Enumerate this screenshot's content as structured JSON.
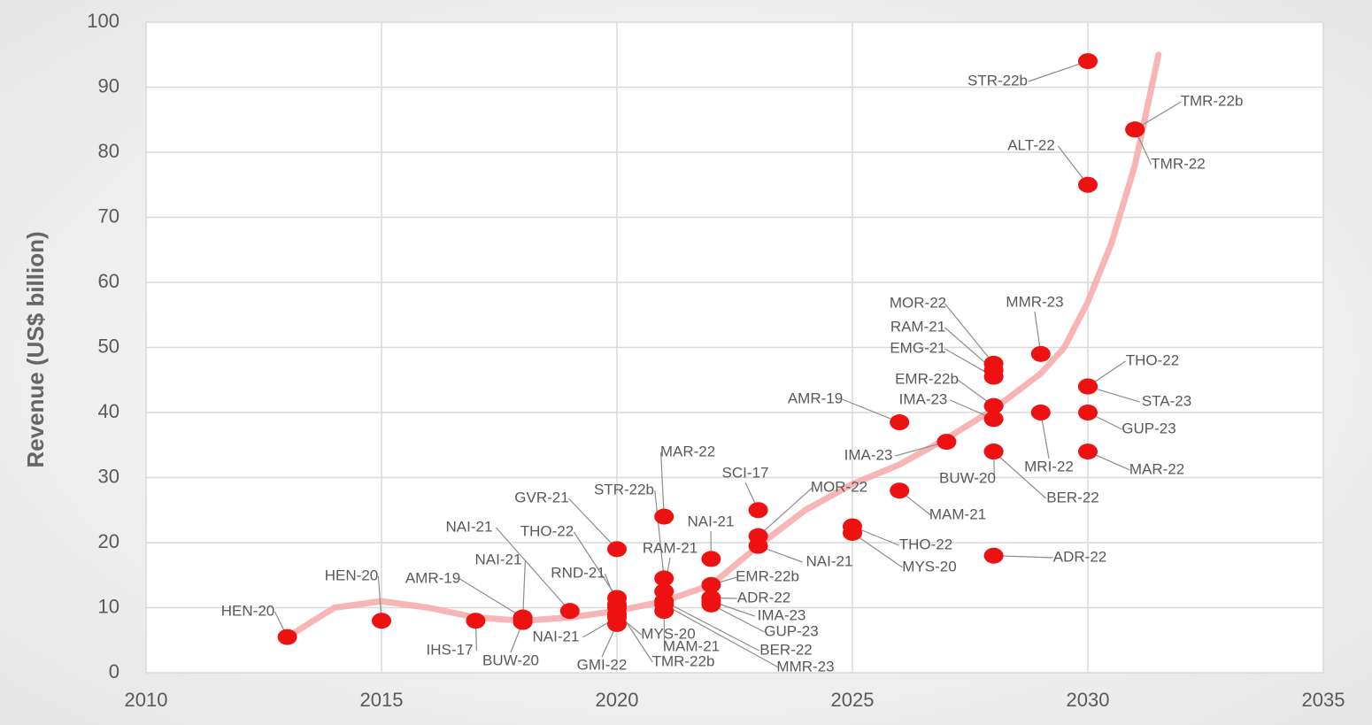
{
  "chart_data": {
    "type": "scatter",
    "y_label": "Revenue (US$ billion)",
    "xlim": [
      2010,
      2035
    ],
    "xticks": [
      2010,
      2015,
      2020,
      2025,
      2030,
      2035
    ],
    "ylim": [
      0,
      100
    ],
    "yticks": [
      0,
      10,
      20,
      30,
      40,
      50,
      60,
      70,
      80,
      90,
      100
    ],
    "grid": true,
    "series": [
      {
        "color": "#ee1111",
        "x": [
          2013,
          2015,
          2017,
          2018,
          2018,
          2018,
          2019,
          2020,
          2020,
          2020,
          2020,
          2020,
          2020,
          2020,
          2021,
          2021,
          2021,
          2021,
          2021,
          2021,
          2022,
          2022,
          2022,
          2022,
          2022,
          2023,
          2023,
          2023,
          2025,
          2025,
          2026,
          2026,
          2027,
          2028,
          2028,
          2028,
          2028,
          2028,
          2028,
          2028,
          2028,
          2029,
          2029,
          2030,
          2030,
          2030,
          2030,
          2030,
          2030,
          2031,
          2031
        ],
        "values": [
          5.5,
          8,
          8,
          8.5,
          7.8,
          8.3,
          9.5,
          11.5,
          19,
          10.5,
          8.5,
          7.5,
          9,
          10,
          14.5,
          24,
          12.5,
          9.5,
          11,
          10.5,
          17.5,
          13.5,
          11.5,
          11,
          10.5,
          25,
          21,
          19.5,
          22.5,
          21.5,
          28,
          38.5,
          35.5,
          47.5,
          46.5,
          45.5,
          41,
          39,
          34,
          34,
          18,
          49,
          40,
          94,
          75,
          44,
          44,
          40,
          34,
          83.5,
          83.5
        ],
        "labels": [
          "HEN-20",
          "HEN-20",
          "IHS-17",
          "AMR-19",
          "BUW-20",
          "NAI-21",
          "NAI-21",
          "THO-22",
          "GVR-21",
          "RND-21",
          "NAI-21",
          "GMI-22",
          "MYS-20",
          "TMR-22b",
          "STR-22b",
          "MAR-22",
          "RAM-21",
          "MAM-21",
          "BER-22",
          "MMR-23",
          "NAI-21",
          "EMR-22b",
          "ADR-22",
          "IMA-23",
          "GUP-23",
          "SCI-17",
          "MOR-22",
          "NAI-21",
          "THO-22",
          "MYS-20",
          "MAM-21",
          "AMR-19",
          "IMA-23",
          "MOR-22",
          "RAM-21",
          "EMG-21",
          "EMR-22b",
          "IMA-23",
          "BUW-20",
          "BER-22",
          "ADR-22",
          "MMR-23",
          "MRI-22",
          "STR-22b",
          "ALT-22",
          "THO-22",
          "STA-23",
          "GUP-23",
          "MAR-22",
          "TMR-22b",
          "TMR-22"
        ]
      }
    ],
    "trend": {
      "color": "#f7a8a8",
      "x": [
        2013,
        2014,
        2015,
        2016,
        2017,
        2018,
        2019,
        2020,
        2021,
        2022,
        2023,
        2024,
        2025,
        2026,
        2027,
        2028,
        2029,
        2029.5,
        2030,
        2030.5,
        2031,
        2031.5
      ],
      "values": [
        5.5,
        10,
        11,
        10,
        8.5,
        8,
        8.5,
        9.5,
        11,
        13.5,
        19.5,
        25,
        29,
        32,
        36,
        40.5,
        46,
        50,
        57,
        66,
        78,
        95
      ]
    }
  }
}
